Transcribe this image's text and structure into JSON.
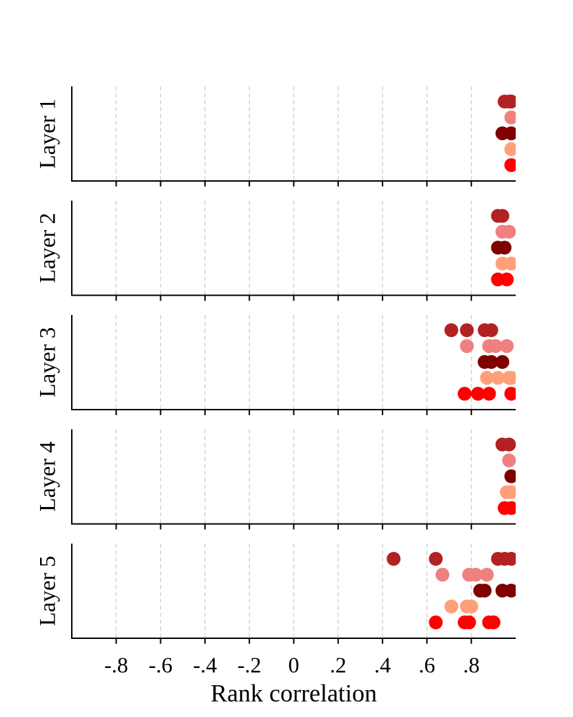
{
  "chart_data": [
    {
      "type": "strip",
      "ylabel": "Layer 1",
      "xlim": [
        -1,
        1
      ],
      "series": [
        {
          "color": "#b22222",
          "values": [
            0.95,
            0.97,
            0.98
          ]
        },
        {
          "color": "#f08080",
          "values": [
            0.98
          ]
        },
        {
          "color": "#800000",
          "values": [
            0.94,
            0.98
          ]
        },
        {
          "color": "#ffa07a",
          "values": [
            0.98
          ]
        },
        {
          "color": "#ff0000",
          "values": [
            0.98
          ]
        }
      ]
    },
    {
      "type": "strip",
      "ylabel": "Layer 2",
      "xlim": [
        -1,
        1
      ],
      "series": [
        {
          "color": "#b22222",
          "values": [
            0.92,
            0.94
          ]
        },
        {
          "color": "#f08080",
          "values": [
            0.94,
            0.97
          ]
        },
        {
          "color": "#800000",
          "values": [
            0.92,
            0.95
          ]
        },
        {
          "color": "#ffa07a",
          "values": [
            0.94,
            0.98
          ]
        },
        {
          "color": "#ff0000",
          "values": [
            0.92,
            0.96
          ]
        }
      ]
    },
    {
      "type": "strip",
      "ylabel": "Layer 3",
      "xlim": [
        -1,
        1
      ],
      "series": [
        {
          "color": "#b22222",
          "values": [
            0.71,
            0.78,
            0.86,
            0.89
          ]
        },
        {
          "color": "#f08080",
          "values": [
            0.78,
            0.88,
            0.91,
            0.96
          ]
        },
        {
          "color": "#800000",
          "values": [
            0.86,
            0.89,
            0.94
          ]
        },
        {
          "color": "#ffa07a",
          "values": [
            0.87,
            0.92,
            0.97,
            0.98
          ]
        },
        {
          "color": "#ff0000",
          "values": [
            0.77,
            0.83,
            0.88,
            0.98
          ]
        }
      ]
    },
    {
      "type": "strip",
      "ylabel": "Layer 4",
      "xlim": [
        -1,
        1
      ],
      "series": [
        {
          "color": "#b22222",
          "values": [
            0.94,
            0.97
          ]
        },
        {
          "color": "#f08080",
          "values": [
            0.97
          ]
        },
        {
          "color": "#800000",
          "values": [
            0.98
          ]
        },
        {
          "color": "#ffa07a",
          "values": [
            0.96,
            0.98
          ]
        },
        {
          "color": "#ff0000",
          "values": [
            0.95,
            0.98
          ]
        }
      ]
    },
    {
      "type": "strip",
      "ylabel": "Layer 5",
      "xlabel": "Rank correlation",
      "xlim": [
        -1,
        1
      ],
      "xticks": [
        {
          "value": -0.8,
          "label": "-.8"
        },
        {
          "value": -0.6,
          "label": "-.6"
        },
        {
          "value": -0.4,
          "label": "-.4"
        },
        {
          "value": -0.2,
          "label": "-.2"
        },
        0,
        {
          "value": 0.2,
          "label": ".2"
        },
        {
          "value": 0.4,
          "label": ".4"
        },
        {
          "value": 0.6,
          "label": ".6"
        },
        {
          "value": 0.8,
          "label": ".8"
        }
      ],
      "grid": true,
      "series": [
        {
          "color": "#b22222",
          "values": [
            0.45,
            0.64,
            0.92,
            0.95,
            0.98
          ]
        },
        {
          "color": "#f08080",
          "values": [
            0.67,
            0.79,
            0.82,
            0.87
          ]
        },
        {
          "color": "#800000",
          "values": [
            0.84,
            0.86,
            0.94,
            0.98
          ]
        },
        {
          "color": "#ffa07a",
          "values": [
            0.71,
            0.78,
            0.8
          ]
        },
        {
          "color": "#ff0000",
          "values": [
            0.64,
            0.77,
            0.79,
            0.88,
            0.9
          ]
        }
      ]
    }
  ]
}
